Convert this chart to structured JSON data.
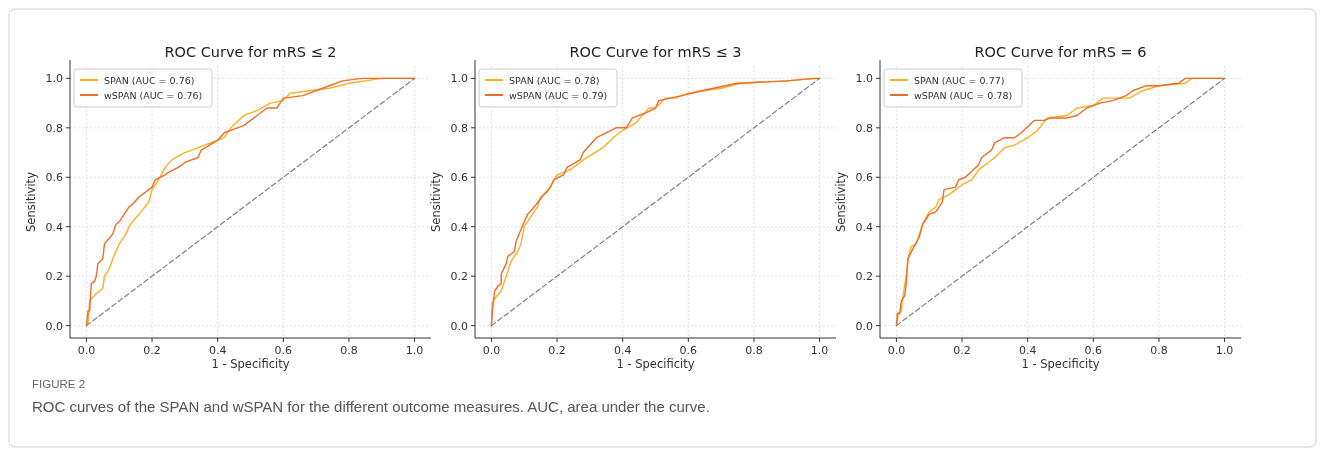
{
  "chart_data": [
    {
      "type": "line",
      "title": "ROC Curve for mRS ≤ 2",
      "xlabel": "1 - Specificity",
      "ylabel": "Sensitivity",
      "xlim": [
        -0.05,
        1.05
      ],
      "ylim": [
        -0.05,
        1.05
      ],
      "xticks": [
        {
          "value": 0,
          "label": "0.0"
        },
        {
          "value": 0.2,
          "label": "0.2"
        },
        {
          "value": 0.4,
          "label": "0.4"
        },
        {
          "value": 0.6,
          "label": "0.6"
        },
        {
          "value": 0.8,
          "label": "0.8"
        },
        {
          "value": 1,
          "label": "1.0"
        }
      ],
      "yticks": [
        {
          "value": 0,
          "label": "0.0"
        },
        {
          "value": 0.2,
          "label": "0.2"
        },
        {
          "value": 0.4,
          "label": "0.4"
        },
        {
          "value": 0.6,
          "label": "0.6"
        },
        {
          "value": 0.8,
          "label": "0.8"
        },
        {
          "value": 1,
          "label": "1.0"
        }
      ],
      "grid": true,
      "legend": "top left",
      "line_style": "solid",
      "marker": "none",
      "annotations": [
        "FIGURE 2",
        "ROC curves of the SPAN and wSPAN for the different outcome measures. AUC, area under the curve."
      ],
      "series": [
        {
          "name": "SPAN (AUC = 0.76)",
          "color": "#fbb020",
          "x": [
            0,
            0.005,
            0.01,
            0.03,
            0.05,
            0.055,
            0.07,
            0.08,
            0.09,
            0.1,
            0.12,
            0.13,
            0.14,
            0.16,
            0.19,
            0.2,
            0.22,
            0.24,
            0.26,
            0.3,
            0.34,
            0.38,
            0.42,
            0.44,
            0.48,
            0.52,
            0.56,
            0.6,
            0.62,
            0.68,
            0.74,
            0.8,
            0.9,
            1
          ],
          "values": [
            0,
            0.01,
            0.1,
            0.13,
            0.15,
            0.2,
            0.23,
            0.27,
            0.3,
            0.33,
            0.37,
            0.4,
            0.42,
            0.45,
            0.5,
            0.55,
            0.59,
            0.64,
            0.67,
            0.7,
            0.72,
            0.74,
            0.76,
            0.8,
            0.85,
            0.87,
            0.9,
            0.91,
            0.94,
            0.95,
            0.96,
            0.98,
            1,
            1
          ]
        },
        {
          "name": "wSPAN (AUC = 0.76)",
          "color": "#ee6c2c",
          "x": [
            0,
            0.005,
            0.01,
            0.012,
            0.015,
            0.025,
            0.03,
            0.035,
            0.05,
            0.055,
            0.08,
            0.09,
            0.1,
            0.13,
            0.14,
            0.16,
            0.2,
            0.21,
            0.24,
            0.25,
            0.28,
            0.3,
            0.34,
            0.35,
            0.4,
            0.42,
            0.44,
            0.48,
            0.52,
            0.55,
            0.58,
            0.6,
            0.66,
            0.72,
            0.78,
            0.84,
            1
          ],
          "values": [
            0,
            0.06,
            0.06,
            0.11,
            0.17,
            0.18,
            0.2,
            0.25,
            0.27,
            0.33,
            0.37,
            0.41,
            0.42,
            0.48,
            0.49,
            0.52,
            0.56,
            0.59,
            0.61,
            0.62,
            0.64,
            0.66,
            0.68,
            0.71,
            0.75,
            0.78,
            0.79,
            0.81,
            0.85,
            0.88,
            0.88,
            0.92,
            0.93,
            0.96,
            0.99,
            1,
            1
          ]
        },
        {
          "type": "line",
          "color": "#808080",
          "line_style": "dashed",
          "x": [
            0,
            1
          ],
          "values": [
            0,
            1
          ]
        }
      ]
    },
    {
      "type": "line",
      "title": "ROC Curve for mRS ≤ 3",
      "xlabel": "1 - Specificity",
      "ylabel": "Sensitivity",
      "xlim": [
        -0.05,
        1.05
      ],
      "ylim": [
        -0.05,
        1.05
      ],
      "xticks": [
        {
          "value": 0,
          "label": "0.0"
        },
        {
          "value": 0.2,
          "label": "0.2"
        },
        {
          "value": 0.4,
          "label": "0.4"
        },
        {
          "value": 0.6,
          "label": "0.6"
        },
        {
          "value": 0.8,
          "label": "0.8"
        },
        {
          "value": 1,
          "label": "1.0"
        }
      ],
      "yticks": [
        {
          "value": 0,
          "label": "0.0"
        },
        {
          "value": 0.2,
          "label": "0.2"
        },
        {
          "value": 0.4,
          "label": "0.4"
        },
        {
          "value": 0.6,
          "label": "0.6"
        },
        {
          "value": 0.8,
          "label": "0.8"
        },
        {
          "value": 1,
          "label": "1.0"
        }
      ],
      "grid": true,
      "legend": "top left",
      "line_style": "solid",
      "marker": "none",
      "series": [
        {
          "name": "SPAN (AUC = 0.78)",
          "color": "#fbb020",
          "x": [
            0,
            0.002,
            0.01,
            0.03,
            0.04,
            0.05,
            0.06,
            0.08,
            0.09,
            0.1,
            0.12,
            0.14,
            0.15,
            0.17,
            0.2,
            0.24,
            0.28,
            0.34,
            0.38,
            0.4,
            0.44,
            0.48,
            0.5,
            0.53,
            0.56,
            0.6,
            0.7,
            0.76,
            0.9,
            1
          ],
          "values": [
            0,
            0.09,
            0.11,
            0.14,
            0.18,
            0.22,
            0.26,
            0.3,
            0.33,
            0.4,
            0.44,
            0.48,
            0.52,
            0.54,
            0.61,
            0.63,
            0.67,
            0.72,
            0.77,
            0.79,
            0.82,
            0.88,
            0.88,
            0.92,
            0.92,
            0.94,
            0.96,
            0.98,
            0.99,
            1
          ]
        },
        {
          "name": "wSPAN (AUC = 0.79)",
          "color": "#ee6c2c",
          "x": [
            0,
            0.003,
            0.01,
            0.02,
            0.03,
            0.03,
            0.045,
            0.05,
            0.07,
            0.075,
            0.1,
            0.11,
            0.13,
            0.16,
            0.18,
            0.19,
            0.22,
            0.23,
            0.27,
            0.28,
            0.32,
            0.38,
            0.41,
            0.43,
            0.47,
            0.5,
            0.51,
            0.58,
            0.64,
            0.75,
            0.9,
            0.98,
            1
          ],
          "values": [
            0,
            0.06,
            0.14,
            0.16,
            0.17,
            0.21,
            0.25,
            0.28,
            0.3,
            0.34,
            0.42,
            0.45,
            0.48,
            0.53,
            0.56,
            0.59,
            0.61,
            0.64,
            0.67,
            0.7,
            0.76,
            0.8,
            0.8,
            0.84,
            0.86,
            0.88,
            0.91,
            0.93,
            0.95,
            0.98,
            0.99,
            1,
            1
          ]
        },
        {
          "type": "line",
          "color": "#808080",
          "line_style": "dashed",
          "x": [
            0,
            1
          ],
          "values": [
            0,
            1
          ]
        }
      ]
    },
    {
      "type": "line",
      "title": "ROC Curve for mRS = 6",
      "xlabel": "1 - Specificity",
      "ylabel": "Sensitivity",
      "xlim": [
        -0.05,
        1.05
      ],
      "ylim": [
        -0.05,
        1.05
      ],
      "xticks": [
        {
          "value": 0,
          "label": "0.0"
        },
        {
          "value": 0.2,
          "label": "0.2"
        },
        {
          "value": 0.4,
          "label": "0.4"
        },
        {
          "value": 0.6,
          "label": "0.6"
        },
        {
          "value": 0.8,
          "label": "0.8"
        },
        {
          "value": 1,
          "label": "1.0"
        }
      ],
      "yticks": [
        {
          "value": 0,
          "label": "0.0"
        },
        {
          "value": 0.2,
          "label": "0.2"
        },
        {
          "value": 0.4,
          "label": "0.4"
        },
        {
          "value": 0.6,
          "label": "0.6"
        },
        {
          "value": 0.8,
          "label": "0.8"
        },
        {
          "value": 1,
          "label": "1.0"
        }
      ],
      "grid": true,
      "legend": "top left",
      "line_style": "solid",
      "marker": "none",
      "series": [
        {
          "name": "SPAN (AUC = 0.77)",
          "color": "#fbb020",
          "x": [
            0,
            0.005,
            0.015,
            0.02,
            0.03,
            0.035,
            0.045,
            0.06,
            0.08,
            0.1,
            0.12,
            0.13,
            0.16,
            0.2,
            0.23,
            0.25,
            0.3,
            0.33,
            0.36,
            0.4,
            0.43,
            0.46,
            0.52,
            0.55,
            0.6,
            0.63,
            0.68,
            0.71,
            0.75,
            0.8,
            0.88,
            0.9,
            1
          ],
          "values": [
            0,
            0.04,
            0.06,
            0.12,
            0.2,
            0.27,
            0.32,
            0.33,
            0.41,
            0.46,
            0.48,
            0.51,
            0.53,
            0.57,
            0.59,
            0.63,
            0.68,
            0.72,
            0.73,
            0.76,
            0.79,
            0.84,
            0.85,
            0.88,
            0.89,
            0.92,
            0.92,
            0.92,
            0.95,
            0.97,
            0.98,
            1,
            1
          ]
        },
        {
          "name": "wSPAN (AUC = 0.78)",
          "color": "#ee6c2c",
          "x": [
            0,
            0.003,
            0.01,
            0.015,
            0.025,
            0.03,
            0.035,
            0.05,
            0.07,
            0.08,
            0.1,
            0.12,
            0.14,
            0.145,
            0.18,
            0.19,
            0.21,
            0.25,
            0.26,
            0.29,
            0.3,
            0.33,
            0.36,
            0.38,
            0.42,
            0.45,
            0.47,
            0.52,
            0.55,
            0.58,
            0.62,
            0.66,
            0.7,
            0.72,
            0.76,
            0.8,
            0.86,
            0.88,
            1
          ],
          "values": [
            0,
            0.05,
            0.05,
            0.1,
            0.12,
            0.17,
            0.27,
            0.31,
            0.36,
            0.41,
            0.45,
            0.46,
            0.5,
            0.55,
            0.56,
            0.59,
            0.6,
            0.65,
            0.68,
            0.71,
            0.74,
            0.76,
            0.76,
            0.78,
            0.83,
            0.83,
            0.84,
            0.84,
            0.85,
            0.88,
            0.9,
            0.91,
            0.93,
            0.95,
            0.97,
            0.97,
            0.98,
            1,
            1
          ]
        },
        {
          "type": "line",
          "color": "#808080",
          "line_style": "dashed",
          "x": [
            0,
            1
          ],
          "values": [
            0,
            1
          ]
        }
      ]
    }
  ]
}
